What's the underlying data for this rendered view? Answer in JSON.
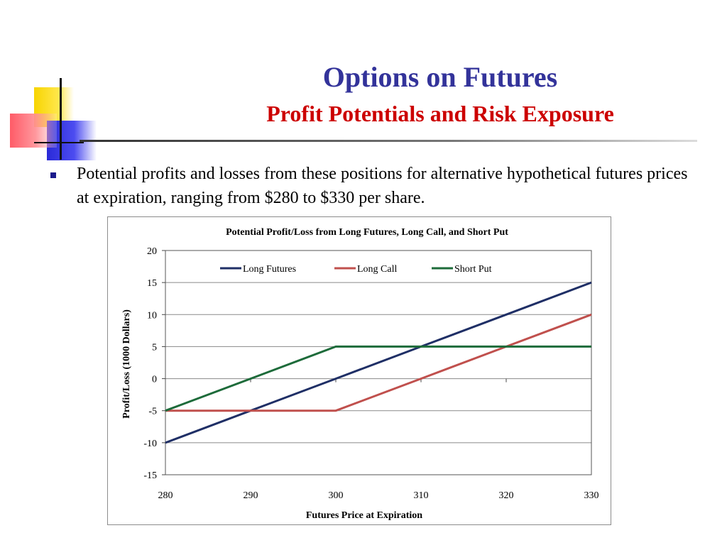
{
  "slide": {
    "title": "Options on Futures",
    "subtitle": "Profit Potentials and Risk Exposure",
    "bullet": "Potential profits and losses from these positions for alternative hypothetical futures prices at expiration, ranging from $280 to $330 per share."
  },
  "colors": {
    "title": "#33339a",
    "subtitle": "#cc0000",
    "long_futures": "#1f2f66",
    "long_call": "#c0504d",
    "short_put": "#1d6b3a"
  },
  "chart_data": {
    "type": "line",
    "title": "Potential Profit/Loss from Long Futures, Long Call, and Short Put",
    "xlabel": "Futures Price at Expiration",
    "ylabel": "Profit/Loss (1000 Dollars)",
    "x": [
      280,
      290,
      300,
      310,
      320,
      330
    ],
    "xlim": [
      280,
      330
    ],
    "ylim": [
      -15,
      20
    ],
    "xticks": [
      "280",
      "290",
      "300",
      "310",
      "320",
      "330"
    ],
    "yticks": [
      "20",
      "15",
      "10",
      "5",
      "0",
      "-5",
      "-10",
      "-15"
    ],
    "grid": true,
    "legend": "top",
    "series": [
      {
        "name": "Long Futures",
        "values": [
          -10,
          -5,
          0,
          5,
          10,
          15
        ],
        "color": "#1f2f66"
      },
      {
        "name": "Long Call",
        "values": [
          -5,
          -5,
          -5,
          0,
          5,
          10
        ],
        "color": "#c0504d"
      },
      {
        "name": "Short Put",
        "values": [
          -5,
          0,
          5,
          5,
          5,
          5
        ],
        "color": "#1d6b3a"
      }
    ]
  }
}
